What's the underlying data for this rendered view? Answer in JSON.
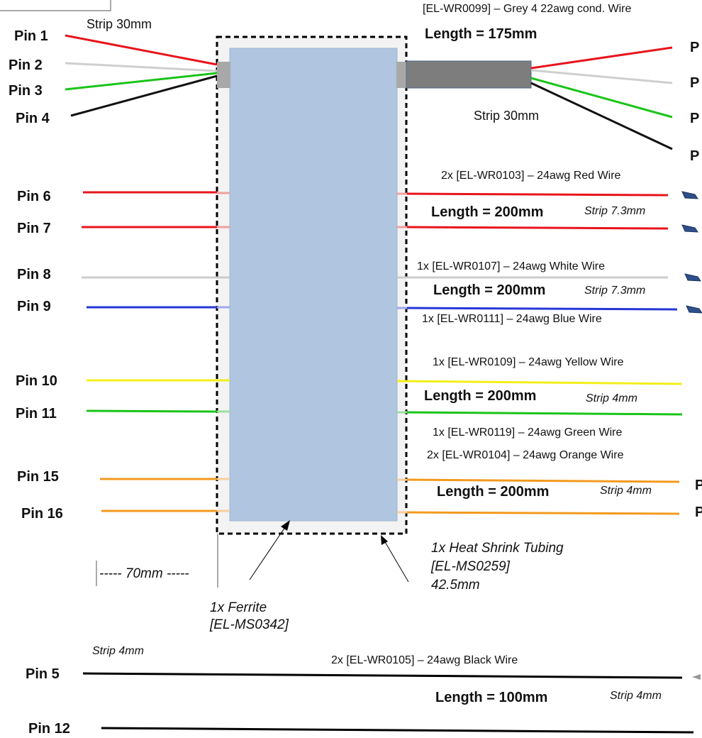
{
  "top_cable": {
    "part_label": "[EL-WR0099] – Grey 4 22awg cond. Wire",
    "length_label": "Length = 175mm",
    "strip_left": "Strip 30mm",
    "strip_right": "Strip 30mm",
    "left_pins": [
      "Pin 1",
      "Pin 2",
      "Pin 3",
      "Pin 4"
    ],
    "right_pins_cut": [
      "P",
      "P",
      "P",
      "P"
    ],
    "wire_colors": [
      "#e8141b",
      "#cfcfcf",
      "#19c419",
      "#111111"
    ]
  },
  "red_group": {
    "part_label": "2x [EL-WR0103] – 24awg Red Wire",
    "length_label": "Length = 200mm",
    "strip": "Strip 7.3mm",
    "pins": [
      "Pin 6",
      "Pin 7"
    ],
    "color": "#e8141b"
  },
  "white_blue_group": {
    "white_label": "1x [EL-WR0107] – 24awg White Wire",
    "blue_label": "1x [EL-WR0111] – 24awg Blue Wire",
    "length_label": "Length = 200mm",
    "strip": "Strip 7.3mm",
    "pins": [
      "Pin 8",
      "Pin 9"
    ],
    "colors": [
      "#cccccc",
      "#2636d8"
    ]
  },
  "yellow_green_group": {
    "yellow_label": "1x [EL-WR0109] – 24awg Yellow Wire",
    "green_label": "1x [EL-WR0119] – 24awg Green Wire",
    "length_label": "Length = 200mm",
    "strip": "Strip 4mm",
    "pins": [
      "Pin 10",
      "Pin 11"
    ],
    "colors": [
      "#f2ef1a",
      "#19c419"
    ]
  },
  "orange_group": {
    "part_label": "2x [EL-WR0104] – 24awg Orange Wire",
    "length_label": "Length = 200mm",
    "strip": "Strip 4mm",
    "pins": [
      "Pin 15",
      "Pin 16"
    ],
    "right_pins_cut": [
      "P",
      "P"
    ],
    "color": "#f29a1e"
  },
  "black_group": {
    "part_label": "2x [EL-WR0105] – 24awg Black Wire",
    "length_label": "Length = 100mm",
    "strip_left": "Strip 4mm",
    "strip_right": "Strip 4mm",
    "pins": [
      "Pin 5",
      "Pin 12"
    ],
    "color": "#000000"
  },
  "ferrite": {
    "label_line1": "1x Ferrite",
    "label_line2": "[EL-MS0342]",
    "color": "#afc5e0"
  },
  "heat_shrink": {
    "label_line1": "1x Heat Shrink Tubing",
    "label_line2": "[EL-MS0259]",
    "label_line3": "42.5mm"
  },
  "dimension_label": "----- 70mm -----",
  "colors": {
    "cable_jacket": "#7d7d7d",
    "connector_blue": "#2e4f8a",
    "outline_dash": "#000000",
    "shrink_fill": "#f3f3f3"
  }
}
